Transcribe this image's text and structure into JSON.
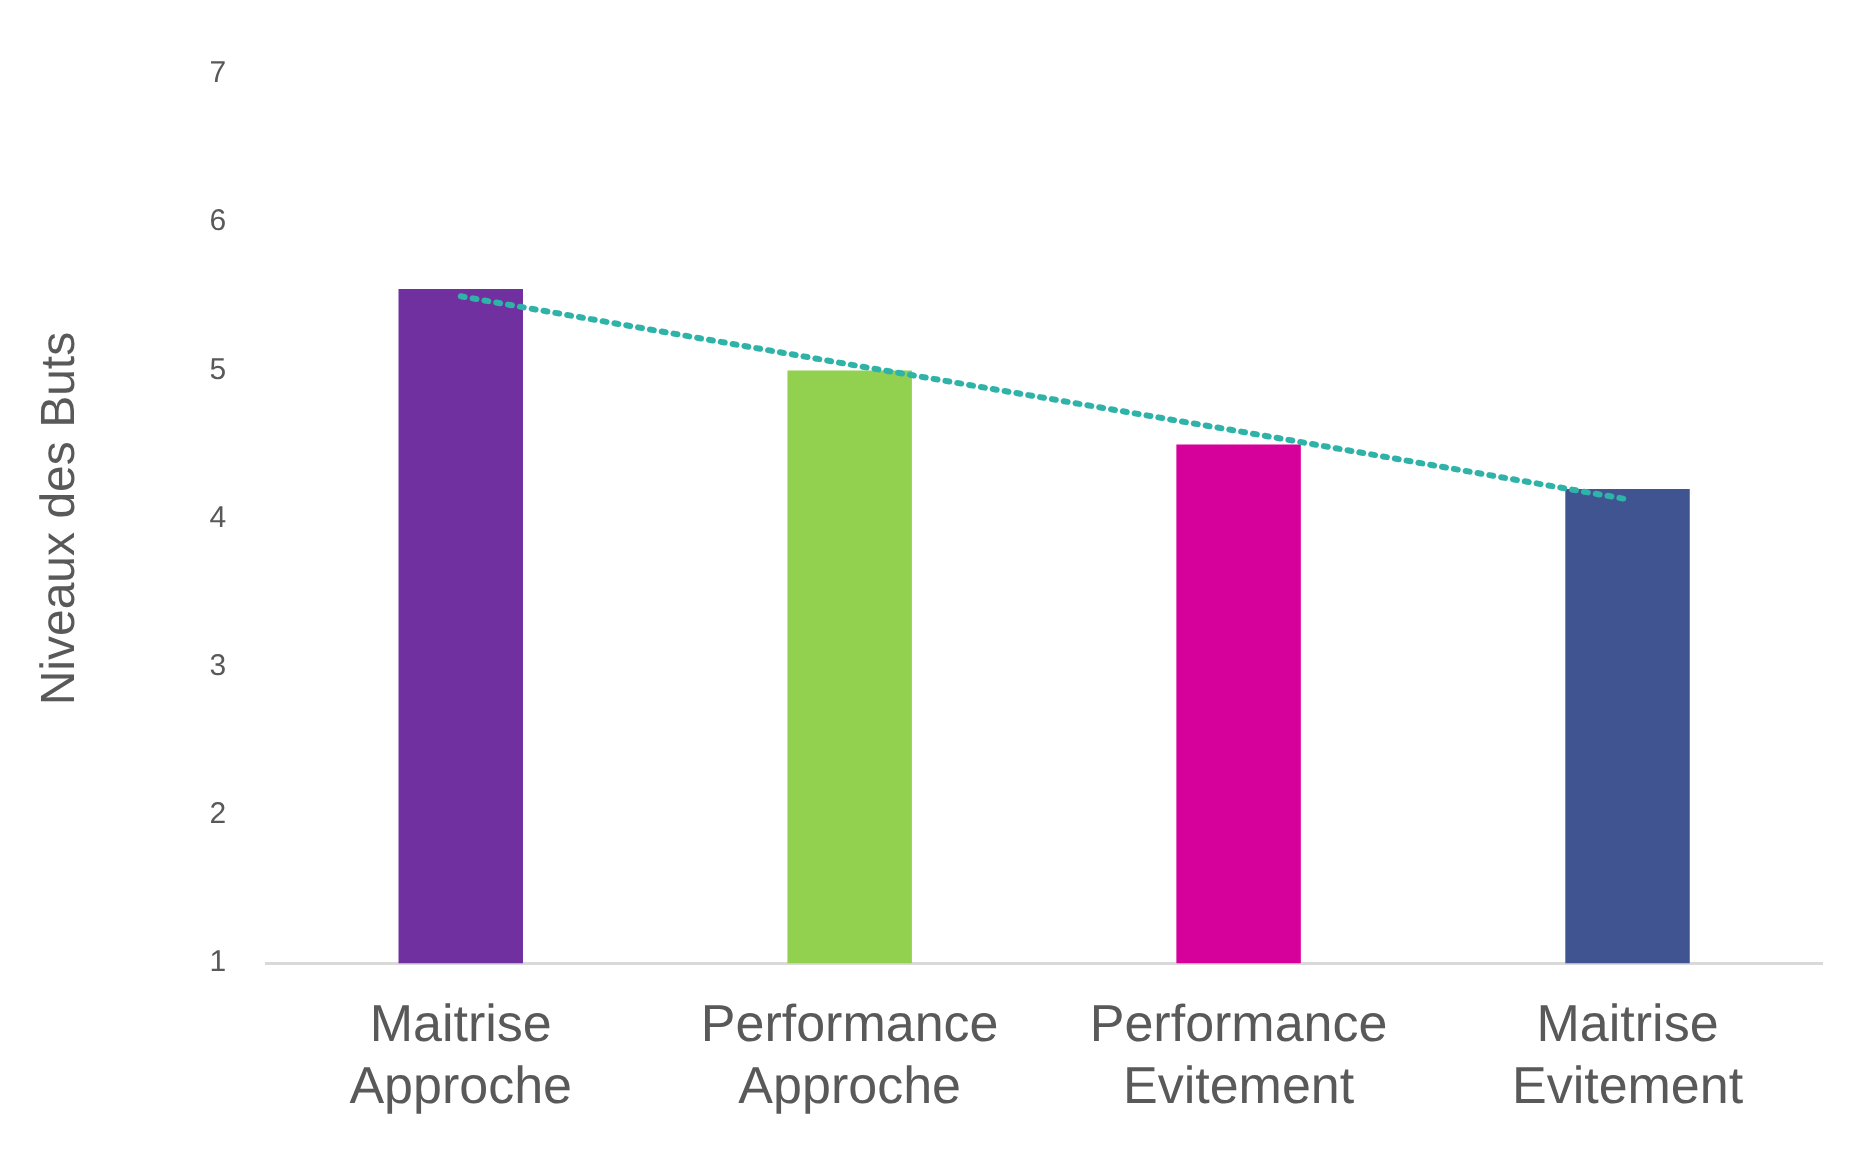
{
  "chart_data": {
    "type": "bar",
    "ylabel": "Niveaux des Buts",
    "categories": [
      "Maitrise Approche",
      "Performance Approche",
      "Performance Evitement",
      "Maitrise Evitement"
    ],
    "ylim": [
      1,
      7
    ],
    "yticks": [
      1,
      2,
      3,
      4,
      5,
      6,
      7
    ],
    "grid": false,
    "legend": false,
    "series": [
      {
        "colors": [
          "#7030a0",
          "#92d050",
          "#d6009a",
          "#3f5491"
        ],
        "values": [
          5.55,
          5.0,
          4.5,
          4.2
        ]
      },
      {
        "type": "line",
        "color": "#2fb3a8",
        "line_style": "dotted",
        "marker": "none",
        "x": [
          "Maitrise Approche",
          "Performance Approche",
          "Performance Evitement",
          "Maitrise Evitement"
        ],
        "values": [
          5.5,
          5.04,
          4.59,
          4.13
        ]
      }
    ]
  }
}
